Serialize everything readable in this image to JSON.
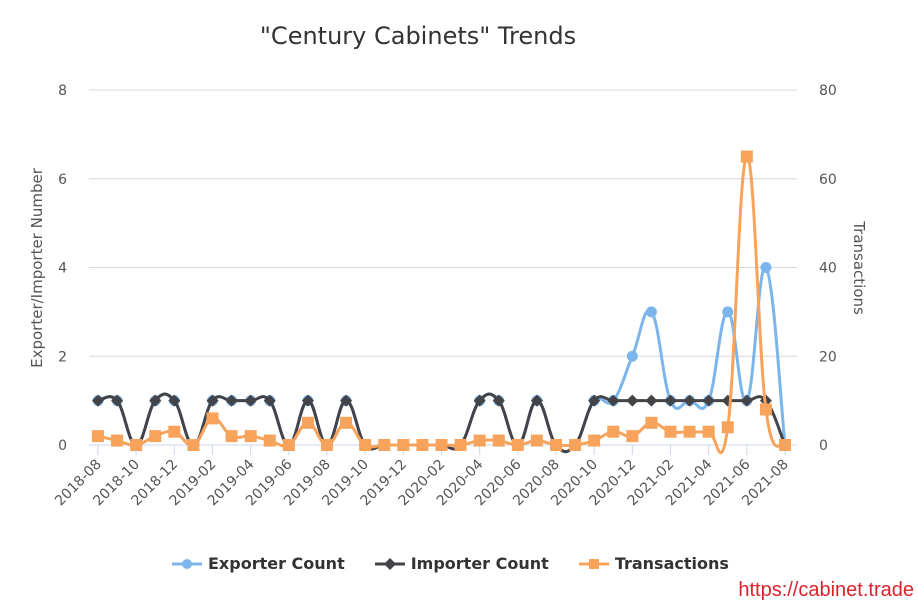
{
  "chart_data": {
    "type": "line",
    "title": "\"Century Cabinets\" Trends",
    "xlabel": "",
    "ylabel": "Exporter/Importer Number",
    "ylabel_right": "Transactions",
    "ylim": [
      0,
      8
    ],
    "ylim_right": [
      0,
      80
    ],
    "yticks": [
      0,
      2,
      4,
      6,
      8
    ],
    "yticks_right": [
      0,
      20,
      40,
      60,
      80
    ],
    "grid": true,
    "legend_position": "bottom",
    "x": [
      "2018-08",
      "2018-09",
      "2018-10",
      "2018-11",
      "2018-12",
      "2019-01",
      "2019-02",
      "2019-03",
      "2019-04",
      "2019-05",
      "2019-06",
      "2019-07",
      "2019-08",
      "2019-09",
      "2019-10",
      "2019-11",
      "2019-12",
      "2020-01",
      "2020-02",
      "2020-03",
      "2020-04",
      "2020-05",
      "2020-06",
      "2020-07",
      "2020-08",
      "2020-09",
      "2020-10",
      "2020-11",
      "2020-12",
      "2021-01",
      "2021-02",
      "2021-03",
      "2021-04",
      "2021-05",
      "2021-06",
      "2021-07",
      "2021-08"
    ],
    "xtick_labels": [
      "2018-08",
      "2018-10",
      "2018-12",
      "2019-02",
      "2019-04",
      "2019-06",
      "2019-08",
      "2019-10",
      "2019-12",
      "2020-02",
      "2020-04",
      "2020-06",
      "2020-08",
      "2020-10",
      "2020-12",
      "2021-02",
      "2021-04",
      "2021-06",
      "2021-08"
    ],
    "series": [
      {
        "name": "Exporter Count",
        "axis": "left",
        "color": "#7cb5ec",
        "marker": "circle",
        "values": [
          1,
          1,
          0,
          1,
          1,
          0,
          1,
          1,
          1,
          1,
          0,
          1,
          0,
          1,
          0,
          0,
          0,
          0,
          0,
          0,
          1,
          1,
          0,
          1,
          0,
          0,
          1,
          1,
          2,
          3,
          1,
          1,
          1,
          3,
          1,
          4,
          0
        ]
      },
      {
        "name": "Importer Count",
        "axis": "left",
        "color": "#434348",
        "marker": "diamond",
        "values": [
          1,
          1,
          0,
          1,
          1,
          0,
          1,
          1,
          1,
          1,
          0,
          1,
          0,
          1,
          0,
          0,
          0,
          0,
          0,
          0,
          1,
          1,
          0,
          1,
          0,
          0,
          1,
          1,
          1,
          1,
          1,
          1,
          1,
          1,
          1,
          1,
          0
        ]
      },
      {
        "name": "Transactions",
        "axis": "right",
        "color": "#f7a35c",
        "marker": "square",
        "values": [
          2,
          1,
          0,
          2,
          3,
          0,
          6,
          2,
          2,
          1,
          0,
          5,
          0,
          5,
          0,
          0,
          0,
          0,
          0,
          0,
          1,
          1,
          0,
          1,
          0,
          0,
          1,
          3,
          2,
          5,
          3,
          3,
          3,
          4,
          65,
          8,
          0
        ]
      }
    ]
  },
  "legend": [
    {
      "label": "Exporter Count",
      "color": "#7cb5ec",
      "marker": "circle"
    },
    {
      "label": "Importer Count",
      "color": "#434348",
      "marker": "diamond"
    },
    {
      "label": "Transactions",
      "color": "#f7a35c",
      "marker": "square"
    }
  ],
  "watermark": "https://cabinet.trade"
}
